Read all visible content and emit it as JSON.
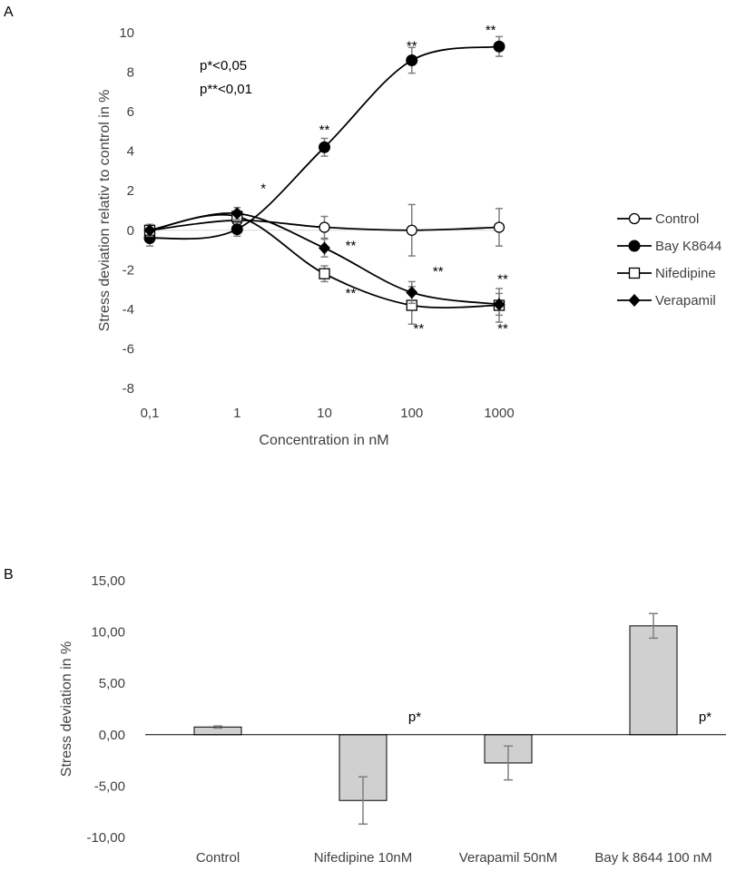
{
  "panel_a_label": "A",
  "panel_b_label": "B",
  "chart_data": [
    {
      "type": "line",
      "x_scale": "log",
      "x": [
        0.1,
        1,
        10,
        100,
        1000
      ],
      "x_tick_labels": [
        "0,1",
        "1",
        "10",
        "100",
        "1000"
      ],
      "xlabel": "Concentration in nM",
      "ylabel": "Stress deviation relativ to control in %",
      "ylim": [
        -8,
        10
      ],
      "y_ticks": [
        -8,
        -6,
        -4,
        -2,
        0,
        2,
        4,
        6,
        8,
        10
      ],
      "y_tick_labels": [
        "-8",
        "-6",
        "-4",
        "-2",
        "0",
        "2",
        "4",
        "6",
        "8",
        "10"
      ],
      "grid": false,
      "legend_position": "right",
      "series": [
        {
          "name": "Control",
          "marker": "open-circle",
          "values": [
            0.0,
            0.5,
            0.15,
            0.0,
            0.15
          ],
          "errors": [
            0.3,
            0.3,
            0.55,
            1.3,
            0.95
          ]
        },
        {
          "name": "Bay K8644",
          "marker": "filled-circle",
          "values": [
            -0.4,
            0.05,
            4.2,
            8.6,
            9.3
          ],
          "errors": [
            0.4,
            0.35,
            0.45,
            0.65,
            0.5
          ]
        },
        {
          "name": "Nifedipine",
          "marker": "open-square",
          "values": [
            0.0,
            0.7,
            -2.2,
            -3.8,
            -3.8
          ],
          "errors": [
            0.3,
            0.3,
            0.4,
            0.95,
            0.85
          ]
        },
        {
          "name": "Verapamil",
          "marker": "filled-diamond",
          "values": [
            0.0,
            0.85,
            -0.9,
            -3.15,
            -3.75
          ],
          "errors": [
            0.3,
            0.3,
            0.45,
            0.55,
            0.55
          ]
        }
      ],
      "annotations": [
        {
          "text": "p*<0,05"
        },
        {
          "text": "p**<0,01"
        },
        {
          "text": "*",
          "x": 2,
          "y": 1.9
        },
        {
          "text": "**",
          "x": 10,
          "y": 4.85
        },
        {
          "text": "**",
          "x": 100,
          "y": 9.1
        },
        {
          "text": "**",
          "x": 800,
          "y": 9.9
        },
        {
          "text": "**",
          "x": 20,
          "y": -1.0
        },
        {
          "text": "**",
          "x": 200,
          "y": -2.3
        },
        {
          "text": "**",
          "x": 1100,
          "y": -2.7
        },
        {
          "text": "**",
          "x": 20,
          "y": -3.4
        },
        {
          "text": "**",
          "x": 120,
          "y": -5.2
        },
        {
          "text": "**",
          "x": 1100,
          "y": -5.2
        }
      ]
    },
    {
      "type": "bar",
      "categories": [
        "Control",
        "Nifedipine 10nM",
        "Verapamil 50nM",
        "Bay k 8644 100 nM"
      ],
      "values": [
        0.75,
        -6.4,
        -2.75,
        10.6
      ],
      "errors": [
        0.1,
        2.3,
        1.65,
        1.2
      ],
      "ylabel": "Stress deviation  in %",
      "ylim": [
        -10,
        15
      ],
      "y_ticks": [
        -10,
        -5,
        0,
        5,
        10,
        15
      ],
      "y_tick_labels": [
        "-10,00",
        "-5,00",
        "0,00",
        "5,00",
        "10,00",
        "15,00"
      ],
      "bar_color": "#d0d0d0",
      "grid": false,
      "significance_labels": [
        "",
        "p*",
        "",
        "p*"
      ]
    }
  ]
}
